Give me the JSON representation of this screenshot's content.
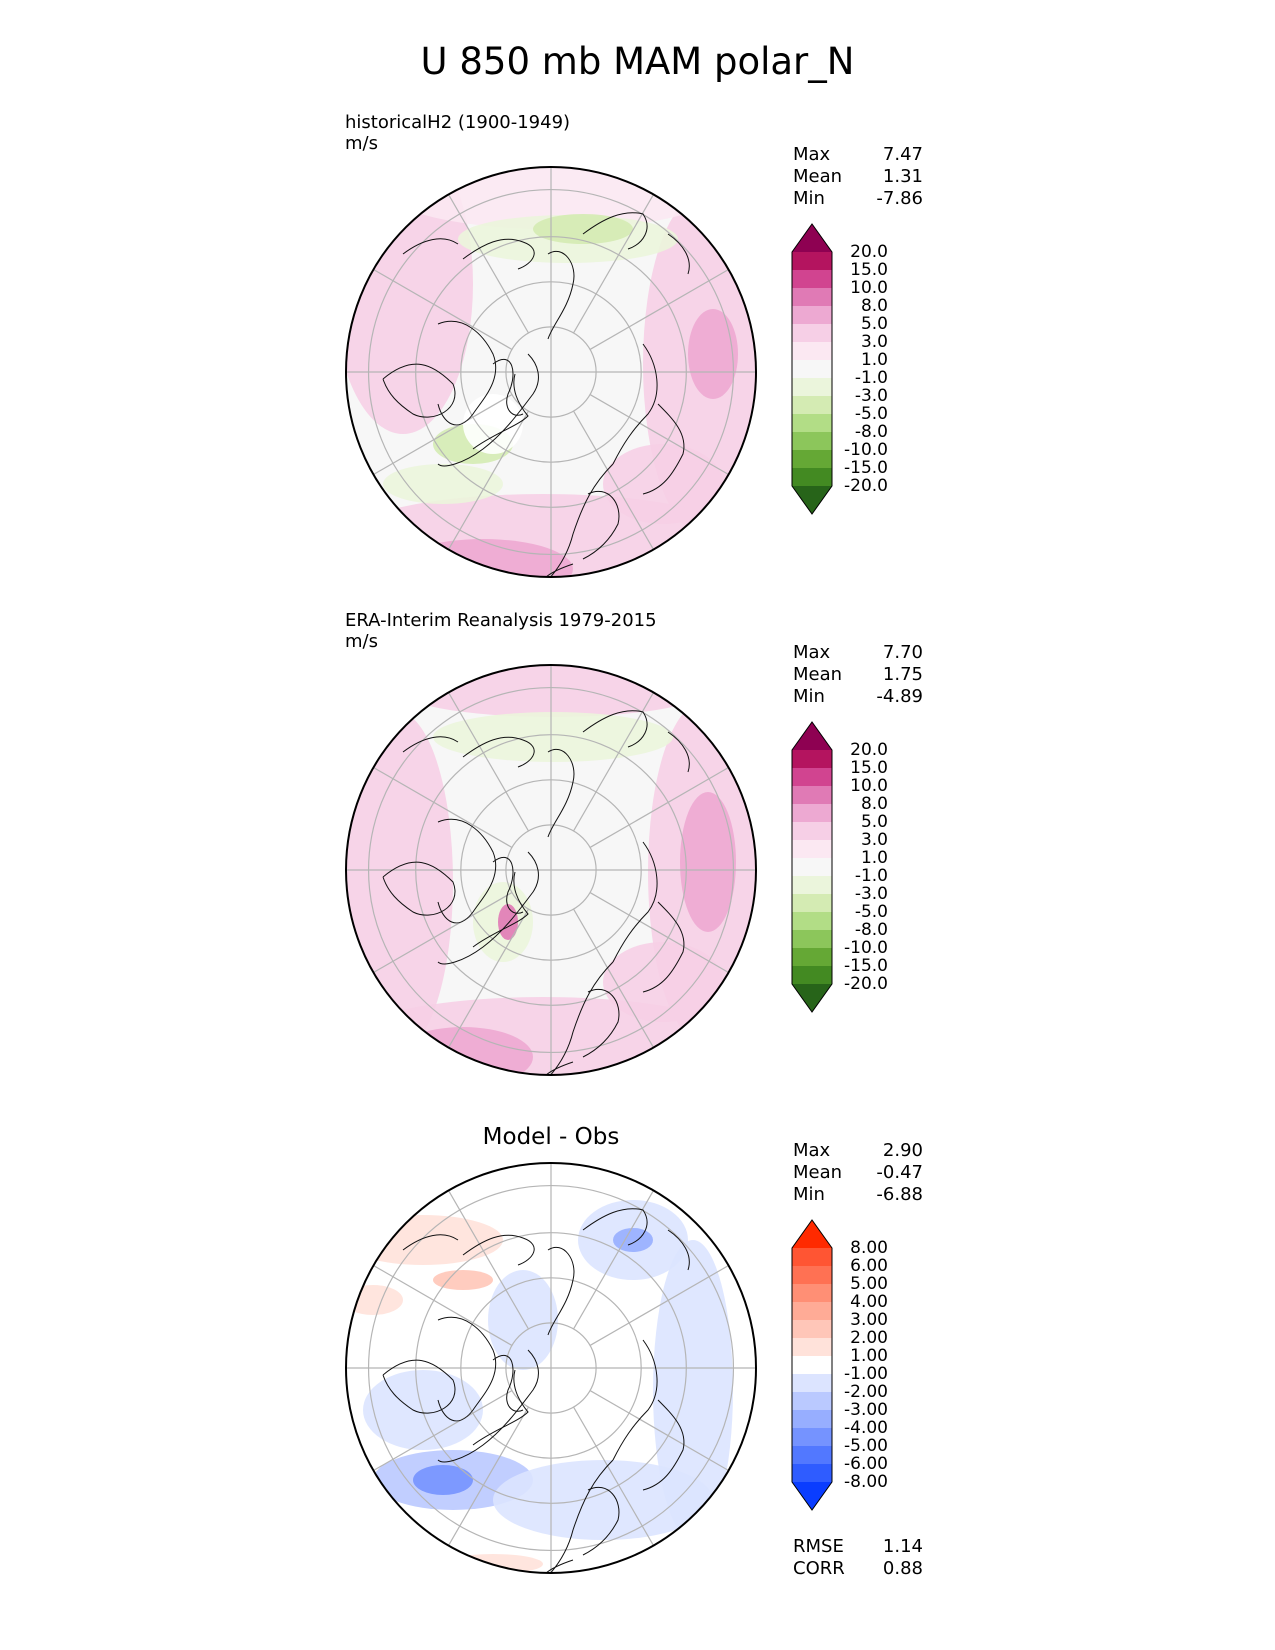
{
  "title": "U 850 mb MAM polar_N",
  "chart_data": [
    {
      "type": "heatmap",
      "title": "historicalH2 (1900-1949)",
      "units": "m/s",
      "stats": {
        "Max": "7.47",
        "Mean": "1.31",
        "Min": "-7.86"
      },
      "colorbar": {
        "levels": [
          "20.0",
          "15.0",
          "10.0",
          "8.0",
          "5.0",
          "3.0",
          "1.0",
          "-1.0",
          "-3.0",
          "-5.0",
          "-8.0",
          "-10.0",
          "-15.0",
          "-20.0"
        ],
        "colors": [
          "#8e0152",
          "#b4145f",
          "#d14490",
          "#e07ab5",
          "#eda9d2",
          "#f6cfe6",
          "#fbe8f2",
          "#f7f7f7",
          "#ebf5dc",
          "#d4ebb3",
          "#b2dd86",
          "#8cc65b",
          "#65a835",
          "#438a22",
          "#276419"
        ]
      }
    },
    {
      "type": "heatmap",
      "title": "ERA-Interim Reanalysis 1979-2015",
      "units": "m/s",
      "stats": {
        "Max": "7.70",
        "Mean": "1.75",
        "Min": "-4.89"
      },
      "colorbar": {
        "levels": [
          "20.0",
          "15.0",
          "10.0",
          "8.0",
          "5.0",
          "3.0",
          "1.0",
          "-1.0",
          "-3.0",
          "-5.0",
          "-8.0",
          "-10.0",
          "-15.0",
          "-20.0"
        ],
        "colors": [
          "#8e0152",
          "#b4145f",
          "#d14490",
          "#e07ab5",
          "#eda9d2",
          "#f6cfe6",
          "#fbe8f2",
          "#f7f7f7",
          "#ebf5dc",
          "#d4ebb3",
          "#b2dd86",
          "#8cc65b",
          "#65a835",
          "#438a22",
          "#276419"
        ]
      }
    },
    {
      "type": "heatmap",
      "title": "Model - Obs",
      "stats": {
        "Max": "2.90",
        "Mean": "-0.47",
        "Min": "-6.88"
      },
      "colorbar": {
        "levels": [
          "8.00",
          "6.00",
          "5.00",
          "4.00",
          "3.00",
          "2.00",
          "1.00",
          "-1.00",
          "-2.00",
          "-3.00",
          "-4.00",
          "-5.00",
          "-6.00",
          "-8.00"
        ],
        "colors": [
          "#ff2a00",
          "#ff5533",
          "#ff7153",
          "#ff8f75",
          "#ffab96",
          "#ffc6b8",
          "#ffe2da",
          "#ffffff",
          "#dce4ff",
          "#bac9ff",
          "#97aeff",
          "#7593ff",
          "#5278ff",
          "#2f5cff",
          "#0a3dff"
        ]
      },
      "metrics": {
        "RMSE": "1.14",
        "CORR": "0.88"
      }
    }
  ]
}
